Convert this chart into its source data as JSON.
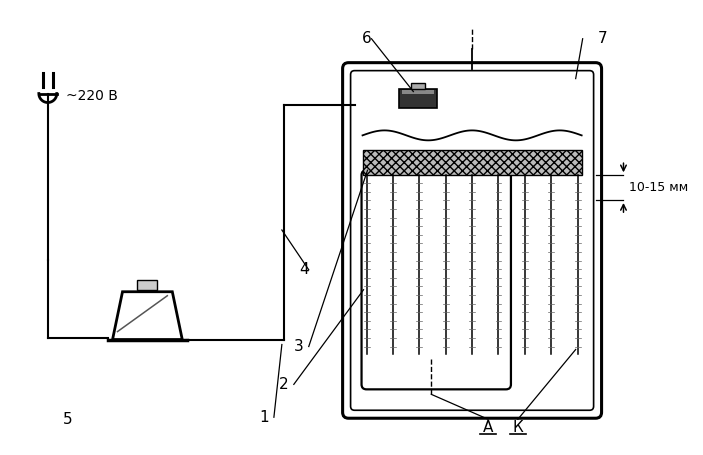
{
  "bg_color": "#ffffff",
  "line_color": "#000000",
  "labels": {
    "voltage": "~220 В",
    "dimension": "10-15 мм",
    "n1": "1",
    "n2": "2",
    "n3": "3",
    "n4": "4",
    "n5": "5",
    "n6": "6",
    "n7": "7",
    "nA": "А",
    "nK": "К"
  },
  "fig_width": 7.03,
  "fig_height": 4.55,
  "dpi": 100
}
